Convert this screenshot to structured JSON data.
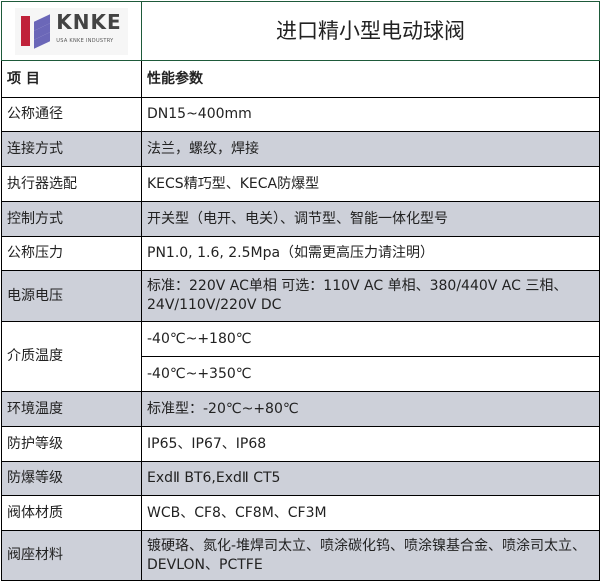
{
  "header": {
    "logo_text": "KNKE",
    "logo_subtext": "USA KNKE INDUSTRY",
    "title": "进口精小型电动球阀"
  },
  "columns": {
    "item": "项 目",
    "param": "性能参数"
  },
  "rows": [
    {
      "label": "公称通径",
      "value": "DN15~400mm"
    },
    {
      "label": "连接方式",
      "value": "法兰，螺纹，焊接"
    },
    {
      "label": "执行器选配",
      "value": "KECS精巧型、KECA防爆型"
    },
    {
      "label": "控制方式",
      "value": "开关型（电开、电关）、调节型、智能一体化型号"
    },
    {
      "label": "公称压力",
      "value": "PN1.0, 1.6, 2.5Mpa（如需更高压力请注明）"
    },
    {
      "label": "电源电压",
      "value": "标准：220V AC单相 可选：110V AC 单相、380/440V AC 三相、24V/110V/220V DC"
    },
    {
      "label": "介质温度",
      "value": "-40℃~+180℃",
      "value2": "-40℃~+350℃"
    },
    {
      "label": "环境温度",
      "value": "标准型：-20℃~+80℃"
    },
    {
      "label": "防护等级",
      "value": "IP65、IP67、IP68"
    },
    {
      "label": "防爆等级",
      "value": "ExdⅡ BT6,ExdⅡ CT5"
    },
    {
      "label": "阀体材质",
      "value": "WCB、CF8、CF8M、CF3M"
    },
    {
      "label": "阀座材料",
      "value": "镀硬珞、氮化-堆焊司太立、喷涂碳化钨、喷涂镍基合金、喷涂司太立、DEVLON、PCTFE"
    }
  ],
  "colors": {
    "shaded_row": "#cdd0d9",
    "header_border": "#1e5a3a",
    "logo_red": "#c0223a",
    "logo_purple": "#6b67b8"
  }
}
